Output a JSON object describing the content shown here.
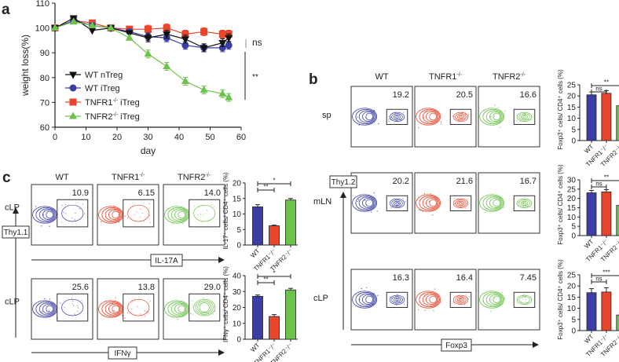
{
  "colors": {
    "wt_ntreg": "#111111",
    "blue": "#3b3fa3",
    "red": "#e8452a",
    "green": "#6cc24a"
  },
  "panel_labels": {
    "a": "a",
    "b": "b",
    "c": "c"
  },
  "chart_data": [
    {
      "id": "a",
      "type": "line",
      "xlabel": "day",
      "ylabel": "weight  loss(%)",
      "xlim": [
        0,
        60
      ],
      "ylim": [
        60,
        110
      ],
      "xticks": [
        "0",
        "10",
        "20",
        "30",
        "40",
        "50",
        "60"
      ],
      "yticks": [
        "60",
        "70",
        "80",
        "90",
        "100",
        "110"
      ],
      "x": [
        0,
        6,
        12,
        18,
        24,
        30,
        36,
        42,
        48,
        54,
        56
      ],
      "series": [
        {
          "name": "WT nTreg",
          "marker": "triangle-down",
          "values": [
            100,
            104,
            99,
            100,
            98,
            96,
            97.5,
            95.5,
            92,
            94,
            96
          ]
        },
        {
          "name": "WT iTreg",
          "marker": "circle",
          "values": [
            100,
            103,
            101,
            100,
            98.5,
            96.5,
            96,
            93,
            92,
            92,
            93
          ]
        },
        {
          "name": "TNFR1-/- iTreg",
          "marker": "square",
          "values": [
            100,
            103,
            102,
            100,
            99.5,
            99.5,
            100,
            97.5,
            98.5,
            97.5,
            97.5
          ]
        },
        {
          "name": "TNFR2-/- iTreg",
          "marker": "triangle-up",
          "values": [
            100,
            102.5,
            101,
            100,
            96,
            89.5,
            84.5,
            78.5,
            75,
            73.5,
            72
          ]
        }
      ],
      "legend_labels": [
        "WT nTreg",
        "WT iTreg",
        "TNFR1",
        "TNFR2"
      ],
      "legend_sup": "-/-",
      "legend_suffix": " iTreg",
      "annotations": [
        "ns",
        "**"
      ],
      "legend": "bottom-left"
    },
    {
      "id": "b-sp",
      "type": "bar",
      "ylabel": "Foxp3⁺ cells/ CD4⁺ cells (%)",
      "categories": [
        "WT",
        "TNFR1⁻/⁻",
        "TNFR2⁻/⁻"
      ],
      "values": [
        20.5,
        21.2,
        15.6
      ],
      "errors": [
        1.3,
        1.2,
        0.6
      ],
      "ylim": [
        0,
        25
      ],
      "yticks": [
        "0",
        "5",
        "10",
        "15",
        "20",
        "25"
      ],
      "significance": [
        "ns",
        "**"
      ]
    },
    {
      "id": "b-mln",
      "type": "bar",
      "ylabel": "Foxp3⁺ cells/ CD4⁺ cells (%)",
      "categories": [
        "WT",
        "TNFR1⁻/⁻",
        "TNFR2⁻/⁻"
      ],
      "values": [
        23.0,
        23.5,
        16.2
      ],
      "errors": [
        1.3,
        1.2,
        0.3
      ],
      "ylim": [
        0,
        30
      ],
      "yticks": [
        "0",
        "5",
        "10",
        "15",
        "20",
        "25",
        "30"
      ],
      "significance": [
        "ns",
        "**"
      ]
    },
    {
      "id": "b-clp",
      "type": "bar",
      "ylabel": "Foxp3⁺ cells/ CD4⁺ cells (%)",
      "categories": [
        "WT",
        "TNFR1⁻/⁻",
        "TNFR2⁻/⁻"
      ],
      "values": [
        17.0,
        17.3,
        7.0
      ],
      "errors": [
        1.8,
        1.9,
        1.0
      ],
      "ylim": [
        0,
        25
      ],
      "yticks": [
        "0",
        "5",
        "10",
        "15",
        "20",
        "25"
      ],
      "significance": [
        "ns",
        "***"
      ]
    },
    {
      "id": "c-il17",
      "type": "bar",
      "ylabel": "IL-17⁺ cells/ CD4⁺ cells (%)",
      "categories": [
        "WT",
        "TNFR1⁻/⁻",
        "TNFR2⁻/⁻"
      ],
      "values": [
        12.3,
        6.2,
        14.5
      ],
      "errors": [
        0.7,
        0.2,
        0.5
      ],
      "ylim": [
        0,
        20
      ],
      "yticks": [
        "0",
        "5",
        "10",
        "15",
        "20"
      ],
      "significance": [
        "**",
        "*"
      ]
    },
    {
      "id": "c-ifng",
      "type": "bar",
      "ylabel": "IFNγ⁺ cells/ CD4⁺ cells (%)",
      "categories": [
        "WT",
        "TNFR1⁻/⁻",
        "TNFR2⁻/⁻"
      ],
      "values": [
        27.0,
        14.3,
        31.0
      ],
      "errors": [
        0.8,
        1.2,
        1.0
      ],
      "ylim": [
        0,
        40
      ],
      "yticks": [
        "0",
        "10",
        "20",
        "30",
        "40"
      ],
      "significance": [
        "**",
        "*"
      ]
    }
  ],
  "flow_b": {
    "columns": [
      "WT",
      "TNFR1",
      "TNFR2"
    ],
    "column_sup": "-/-",
    "rows": [
      {
        "tissue": "sp",
        "percentages": [
          "19.2",
          "20.5",
          "16.6"
        ]
      },
      {
        "tissue": "mLN",
        "percentages": [
          "20.2",
          "21.6",
          "16.7"
        ]
      },
      {
        "tissue": "cLP",
        "percentages": [
          "16.3",
          "16.4",
          "7.45"
        ]
      }
    ],
    "y_marker": "Thy1.2",
    "x_marker": "Foxp3"
  },
  "flow_c": {
    "columns": [
      "WT",
      "TNFR1",
      "TNFR2"
    ],
    "column_sup": "-/-",
    "rows": [
      {
        "tissue": "cLP",
        "percentages": [
          "10.9",
          "6.15",
          "14.0"
        ],
        "x_marker": "IL-17A"
      },
      {
        "tissue": "cLP",
        "percentages": [
          "25.6",
          "13.8",
          "29.0"
        ],
        "x_marker": "IFNγ"
      }
    ],
    "y_marker": "Thy1.1"
  }
}
